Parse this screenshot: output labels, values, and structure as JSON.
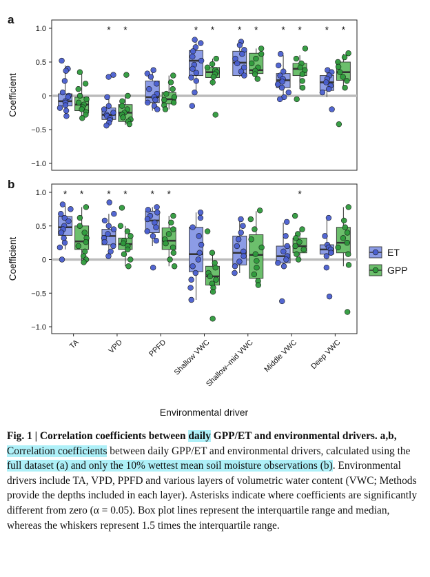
{
  "colors": {
    "ET": "#4a5fd0",
    "GPP": "#2e9a3c",
    "et_box": "#8c9ce6",
    "gpp_box": "#6cbf6c",
    "zero_line": "#bbbbbb"
  },
  "xlabel": "Environmental driver",
  "categories": [
    "TA",
    "VPD",
    "PPFD",
    "Shallow VWC",
    "Shallow–mid VWC",
    "Middle VWC",
    "Deep VWC"
  ],
  "legend": {
    "items": [
      "ET",
      "GPP"
    ],
    "placement": "right"
  },
  "caption": {
    "fig_label": "Fig. 1 | ",
    "title_a": "Correlation coefficients between ",
    "title_hl": "daily",
    "title_b": " GPP/ET and environmental drivers.",
    "panels": " a,b, ",
    "hl1": "Correlation coefficients",
    "t1": " between daily GPP/ET and environmental drivers, calculated using the ",
    "hl2": "full dataset (a) and only the 10% wettest mean soil moisture observations (b)",
    "t2": ". Environmental drivers include TA, VPD, PPFD and various layers of volumetric water content (VWC; Methods provide the depths included in each layer). Asterisks indicate where coefficients are significantly different from zero (α = 0.05). Box plot lines represent the interquartile range and median, whereas the whiskers represent 1.5 times the interquartile range."
  },
  "chart_data": [
    {
      "type": "box",
      "panel": "a",
      "ylabel": "Coefficient",
      "ylim": [
        -1.0,
        1.0
      ],
      "yticks": [
        "1.0",
        "0.5",
        "0",
        "−0.5",
        "−1.0"
      ],
      "categories": [
        "TA",
        "VPD",
        "PPFD",
        "Shallow VWC",
        "Shallow–mid VWC",
        "Middle VWC",
        "Deep VWC"
      ],
      "significant": {
        "ET": [
          false,
          true,
          false,
          true,
          true,
          true,
          true
        ],
        "GPP": [
          false,
          true,
          false,
          true,
          true,
          true,
          true
        ]
      },
      "series": [
        {
          "name": "ET",
          "boxes": [
            {
              "q1": -0.15,
              "median": -0.08,
              "q3": 0.03,
              "whislo": -0.3,
              "whishi": 0.45,
              "points": [
                0.52,
                0.4,
                0.37,
                0.22,
                0.05,
                0.0,
                -0.02,
                -0.08,
                -0.1,
                -0.14,
                -0.18,
                -0.22,
                -0.3
              ]
            },
            {
              "q1": -0.35,
              "median": -0.28,
              "q3": -0.18,
              "whislo": -0.45,
              "whishi": 0.0,
              "points": [
                0.31,
                0.28,
                -0.02,
                -0.15,
                -0.2,
                -0.25,
                -0.28,
                -0.3,
                -0.33,
                -0.36,
                -0.4,
                -0.44
              ]
            },
            {
              "q1": -0.1,
              "median": -0.02,
              "q3": 0.22,
              "whislo": -0.22,
              "whishi": 0.38,
              "points": [
                0.38,
                0.33,
                0.28,
                0.18,
                0.1,
                0.03,
                -0.02,
                -0.06,
                -0.1,
                -0.15,
                -0.2
              ]
            },
            {
              "q1": 0.3,
              "median": 0.52,
              "q3": 0.67,
              "whislo": 0.05,
              "whishi": 0.83,
              "points": [
                0.83,
                0.78,
                0.72,
                0.66,
                0.58,
                0.52,
                0.46,
                0.4,
                0.34,
                0.27,
                0.22,
                0.05,
                -0.15
              ]
            },
            {
              "q1": 0.3,
              "median": 0.49,
              "q3": 0.66,
              "whislo": 0.28,
              "whishi": 0.8,
              "points": [
                0.8,
                0.75,
                0.68,
                0.62,
                0.55,
                0.48,
                0.42,
                0.36,
                0.3
              ]
            },
            {
              "q1": 0.12,
              "median": 0.23,
              "q3": 0.33,
              "whislo": -0.05,
              "whishi": 0.6,
              "points": [
                0.62,
                0.45,
                0.36,
                0.3,
                0.25,
                0.21,
                0.17,
                0.12,
                0.05,
                -0.02,
                -0.05
              ]
            },
            {
              "q1": 0.08,
              "median": 0.2,
              "q3": 0.3,
              "whislo": -0.02,
              "whishi": 0.38,
              "points": [
                0.38,
                0.35,
                0.3,
                0.25,
                0.2,
                0.15,
                0.1,
                0.05,
                -0.2
              ]
            }
          ]
        },
        {
          "name": "GPP",
          "boxes": [
            {
              "q1": -0.22,
              "median": -0.13,
              "q3": -0.02,
              "whislo": -0.33,
              "whishi": 0.32,
              "points": [
                0.35,
                0.18,
                0.1,
                0.0,
                -0.05,
                -0.1,
                -0.13,
                -0.17,
                -0.2,
                -0.24,
                -0.28,
                -0.33
              ]
            },
            {
              "q1": -0.38,
              "median": -0.25,
              "q3": -0.13,
              "whislo": -0.43,
              "whishi": 0.0,
              "points": [
                0.31,
                0.0,
                -0.08,
                -0.15,
                -0.2,
                -0.25,
                -0.28,
                -0.32,
                -0.35,
                -0.38,
                -0.42
              ]
            },
            {
              "q1": -0.12,
              "median": -0.05,
              "q3": 0.05,
              "whislo": -0.2,
              "whishi": 0.3,
              "points": [
                0.3,
                0.2,
                0.1,
                0.03,
                -0.02,
                -0.06,
                -0.1,
                -0.14,
                -0.2
              ]
            },
            {
              "q1": 0.27,
              "median": 0.35,
              "q3": 0.42,
              "whislo": 0.15,
              "whishi": 0.55,
              "points": [
                0.55,
                0.47,
                0.42,
                0.38,
                0.35,
                0.32,
                0.28,
                0.2,
                -0.28
              ]
            },
            {
              "q1": 0.33,
              "median": 0.38,
              "q3": 0.63,
              "whislo": 0.25,
              "whishi": 0.7,
              "points": [
                0.7,
                0.62,
                0.55,
                0.48,
                0.42,
                0.37,
                0.32,
                0.25
              ]
            },
            {
              "q1": 0.3,
              "median": 0.4,
              "q3": 0.48,
              "whislo": 0.1,
              "whishi": 0.6,
              "points": [
                0.7,
                0.55,
                0.48,
                0.42,
                0.38,
                0.32,
                0.22,
                0.12,
                -0.05
              ]
            },
            {
              "q1": 0.23,
              "median": 0.35,
              "q3": 0.5,
              "whislo": 0.1,
              "whishi": 0.62,
              "points": [
                0.63,
                0.57,
                0.5,
                0.43,
                0.35,
                0.28,
                0.22,
                0.12,
                -0.42
              ]
            }
          ]
        }
      ]
    },
    {
      "type": "box",
      "panel": "b",
      "ylabel": "Coefficient",
      "ylim": [
        -1.0,
        1.0
      ],
      "yticks": [
        "1.0",
        "0.5",
        "0",
        "−0.5",
        "−1.0"
      ],
      "categories": [
        "TA",
        "VPD",
        "PPFD",
        "Shallow VWC",
        "Shallow–mid VWC",
        "Middle VWC",
        "Deep VWC"
      ],
      "significant": {
        "ET": [
          true,
          true,
          true,
          false,
          false,
          false,
          false
        ],
        "GPP": [
          true,
          true,
          true,
          false,
          false,
          true,
          false
        ]
      },
      "series": [
        {
          "name": "ET",
          "boxes": [
            {
              "q1": 0.36,
              "median": 0.48,
              "q3": 0.64,
              "whislo": 0.15,
              "whishi": 0.8,
              "points": [
                0.82,
                0.75,
                0.68,
                0.62,
                0.57,
                0.5,
                0.45,
                0.4,
                0.32,
                0.25,
                0.18,
                0.0
              ]
            },
            {
              "q1": 0.22,
              "median": 0.35,
              "q3": 0.45,
              "whislo": 0.05,
              "whishi": 0.68,
              "points": [
                0.85,
                0.68,
                0.58,
                0.5,
                0.45,
                0.38,
                0.32,
                0.26,
                0.2,
                0.12,
                0.05
              ]
            },
            {
              "q1": 0.4,
              "median": 0.58,
              "q3": 0.72,
              "whislo": 0.2,
              "whishi": 0.78,
              "points": [
                0.78,
                0.74,
                0.7,
                0.65,
                0.6,
                0.55,
                0.48,
                0.42,
                0.35,
                0.28,
                -0.12
              ]
            },
            {
              "q1": -0.18,
              "median": 0.08,
              "q3": 0.48,
              "whislo": -0.6,
              "whishi": 0.7,
              "points": [
                0.7,
                0.62,
                0.48,
                0.35,
                0.22,
                0.1,
                0.0,
                -0.1,
                -0.2,
                -0.3,
                -0.42,
                -0.6
              ]
            },
            {
              "q1": -0.08,
              "median": 0.1,
              "q3": 0.35,
              "whislo": -0.2,
              "whishi": 0.6,
              "points": [
                0.6,
                0.5,
                0.4,
                0.3,
                0.2,
                0.12,
                0.05,
                -0.03,
                -0.1,
                -0.2
              ]
            },
            {
              "q1": -0.05,
              "median": 0.05,
              "q3": 0.2,
              "whislo": -0.1,
              "whishi": 0.55,
              "points": [
                0.56,
                0.35,
                0.2,
                0.12,
                0.05,
                0.0,
                -0.05,
                -0.1,
                -0.62
              ]
            },
            {
              "q1": 0.08,
              "median": 0.15,
              "q3": 0.22,
              "whislo": 0.0,
              "whishi": 0.6,
              "points": [
                0.62,
                0.35,
                0.22,
                0.18,
                0.15,
                0.1,
                0.05,
                -0.12,
                -0.55
              ]
            }
          ]
        },
        {
          "name": "GPP",
          "boxes": [
            {
              "q1": 0.15,
              "median": 0.27,
              "q3": 0.5,
              "whislo": -0.05,
              "whishi": 0.78,
              "points": [
                0.78,
                0.62,
                0.5,
                0.4,
                0.32,
                0.26,
                0.2,
                0.12,
                0.05,
                0.0,
                -0.04
              ]
            },
            {
              "q1": 0.15,
              "median": 0.23,
              "q3": 0.32,
              "whislo": -0.1,
              "whishi": 0.5,
              "points": [
                0.77,
                0.5,
                0.42,
                0.35,
                0.28,
                0.24,
                0.2,
                0.15,
                0.08,
                0.0,
                -0.1
              ]
            },
            {
              "q1": 0.15,
              "median": 0.28,
              "q3": 0.47,
              "whislo": -0.1,
              "whishi": 0.65,
              "points": [
                0.65,
                0.55,
                0.45,
                0.38,
                0.3,
                0.24,
                0.18,
                0.1,
                0.0,
                -0.1
              ]
            },
            {
              "q1": -0.38,
              "median": -0.25,
              "q3": -0.1,
              "whislo": -0.48,
              "whishi": 0.1,
              "points": [
                0.42,
                0.1,
                -0.05,
                -0.12,
                -0.2,
                -0.25,
                -0.3,
                -0.36,
                -0.42,
                -0.48,
                -0.88
              ]
            },
            {
              "q1": -0.28,
              "median": 0.07,
              "q3": 0.37,
              "whislo": -0.38,
              "whishi": 0.72,
              "points": [
                0.73,
                0.6,
                0.45,
                0.3,
                0.18,
                0.08,
                -0.02,
                -0.12,
                -0.22,
                -0.32,
                -0.38
              ]
            },
            {
              "q1": 0.1,
              "median": 0.2,
              "q3": 0.32,
              "whislo": 0.0,
              "whishi": 0.45,
              "points": [
                0.65,
                0.45,
                0.38,
                0.32,
                0.26,
                0.2,
                0.15,
                0.08,
                0.0
              ]
            },
            {
              "q1": 0.1,
              "median": 0.25,
              "q3": 0.48,
              "whislo": -0.1,
              "whishi": 0.78,
              "points": [
                0.78,
                0.58,
                0.48,
                0.4,
                0.32,
                0.25,
                0.18,
                0.08,
                -0.08,
                -0.78
              ]
            }
          ]
        }
      ]
    }
  ]
}
